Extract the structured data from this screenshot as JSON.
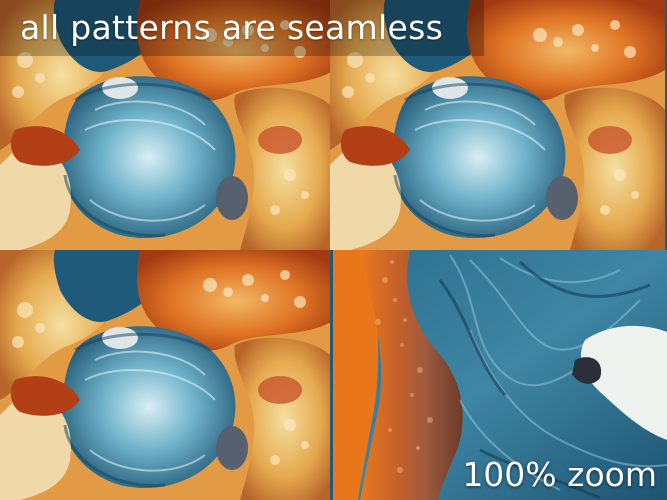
{
  "headline": "all patterns are seamless",
  "zoom_label": "100% zoom",
  "palette": {
    "orange": "#d9661c",
    "rust": "#9a2f12",
    "gold": "#e9b45a",
    "cream": "#f3e4c4",
    "teal": "#2f7f9c",
    "deep_blue": "#1b4f6d",
    "ice": "#cfe7ef",
    "copper": "#b8753e"
  },
  "panels": [
    {
      "name": "pattern-tile-top-left"
    },
    {
      "name": "pattern-tile-top-right"
    },
    {
      "name": "pattern-tile-bottom-left"
    },
    {
      "name": "zoom-detail-panel"
    }
  ]
}
